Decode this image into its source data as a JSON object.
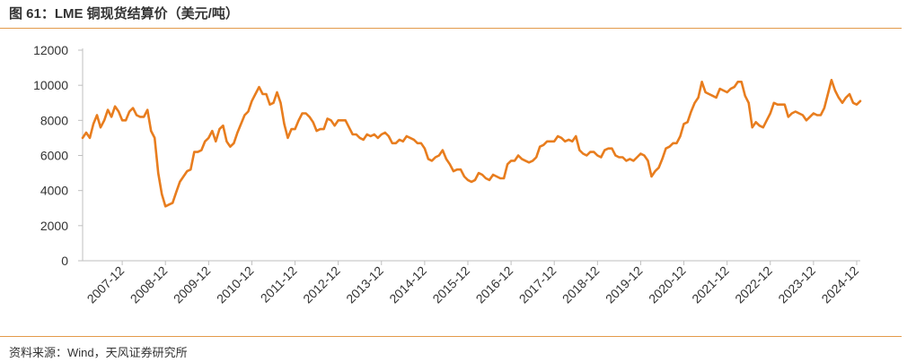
{
  "header": {
    "title": "图 61：LME 铜现货结算价（美元/吨）"
  },
  "footer": {
    "source": "资料来源：Wind，天风证券研究所"
  },
  "colors": {
    "series": "#e87d1e",
    "axis": "#bfbfbf",
    "rule": "#e39a4a"
  },
  "chart_data": {
    "type": "line",
    "title": "",
    "xlabel": "",
    "ylabel": "",
    "ylim": [
      0,
      12000
    ],
    "yticks": [
      0,
      2000,
      4000,
      6000,
      8000,
      10000,
      12000
    ],
    "xlim": [
      "2007-01",
      "2025-01"
    ],
    "xticks": [
      "2007-12",
      "2008-12",
      "2009-12",
      "2010-12",
      "2011-12",
      "2012-12",
      "2013-12",
      "2014-12",
      "2015-12",
      "2016-12",
      "2017-12",
      "2018-12",
      "2019-12",
      "2020-12",
      "2021-12",
      "2022-12",
      "2023-12",
      "2024-12"
    ],
    "grid": false,
    "legend": "none",
    "series": [
      {
        "values": [
          [
            "2007-01",
            7000
          ],
          [
            "2007-02",
            7300
          ],
          [
            "2007-03",
            7000
          ],
          [
            "2007-04",
            7800
          ],
          [
            "2007-05",
            8300
          ],
          [
            "2007-06",
            7600
          ],
          [
            "2007-07",
            8000
          ],
          [
            "2007-08",
            8600
          ],
          [
            "2007-09",
            8200
          ],
          [
            "2007-10",
            8800
          ],
          [
            "2007-11",
            8500
          ],
          [
            "2007-12",
            8000
          ],
          [
            "2008-01",
            8000
          ],
          [
            "2008-02",
            8500
          ],
          [
            "2008-03",
            8700
          ],
          [
            "2008-04",
            8300
          ],
          [
            "2008-05",
            8200
          ],
          [
            "2008-06",
            8200
          ],
          [
            "2008-07",
            8600
          ],
          [
            "2008-08",
            7400
          ],
          [
            "2008-09",
            7000
          ],
          [
            "2008-10",
            5000
          ],
          [
            "2008-11",
            3800
          ],
          [
            "2008-12",
            3100
          ],
          [
            "2009-01",
            3200
          ],
          [
            "2009-02",
            3300
          ],
          [
            "2009-03",
            3900
          ],
          [
            "2009-04",
            4500
          ],
          [
            "2009-05",
            4800
          ],
          [
            "2009-06",
            5100
          ],
          [
            "2009-07",
            5200
          ],
          [
            "2009-08",
            6200
          ],
          [
            "2009-09",
            6200
          ],
          [
            "2009-10",
            6300
          ],
          [
            "2009-11",
            6800
          ],
          [
            "2009-12",
            7000
          ],
          [
            "2010-01",
            7400
          ],
          [
            "2010-02",
            6800
          ],
          [
            "2010-03",
            7500
          ],
          [
            "2010-04",
            7700
          ],
          [
            "2010-05",
            6800
          ],
          [
            "2010-06",
            6500
          ],
          [
            "2010-07",
            6700
          ],
          [
            "2010-08",
            7300
          ],
          [
            "2010-09",
            7800
          ],
          [
            "2010-10",
            8300
          ],
          [
            "2010-11",
            8500
          ],
          [
            "2010-12",
            9100
          ],
          [
            "2011-01",
            9500
          ],
          [
            "2011-02",
            9900
          ],
          [
            "2011-03",
            9500
          ],
          [
            "2011-04",
            9500
          ],
          [
            "2011-05",
            8900
          ],
          [
            "2011-06",
            9000
          ],
          [
            "2011-07",
            9600
          ],
          [
            "2011-08",
            9000
          ],
          [
            "2011-09",
            7800
          ],
          [
            "2011-10",
            7000
          ],
          [
            "2011-11",
            7500
          ],
          [
            "2011-12",
            7500
          ],
          [
            "2012-01",
            8000
          ],
          [
            "2012-02",
            8400
          ],
          [
            "2012-03",
            8400
          ],
          [
            "2012-04",
            8200
          ],
          [
            "2012-05",
            7900
          ],
          [
            "2012-06",
            7400
          ],
          [
            "2012-07",
            7500
          ],
          [
            "2012-08",
            7500
          ],
          [
            "2012-09",
            8100
          ],
          [
            "2012-10",
            8000
          ],
          [
            "2012-11",
            7700
          ],
          [
            "2012-12",
            8000
          ],
          [
            "2013-01",
            8000
          ],
          [
            "2013-02",
            8000
          ],
          [
            "2013-03",
            7600
          ],
          [
            "2013-04",
            7200
          ],
          [
            "2013-05",
            7200
          ],
          [
            "2013-06",
            7000
          ],
          [
            "2013-07",
            6900
          ],
          [
            "2013-08",
            7200
          ],
          [
            "2013-09",
            7100
          ],
          [
            "2013-10",
            7200
          ],
          [
            "2013-11",
            7000
          ],
          [
            "2013-12",
            7200
          ],
          [
            "2014-01",
            7300
          ],
          [
            "2014-02",
            7100
          ],
          [
            "2014-03",
            6700
          ],
          [
            "2014-04",
            6700
          ],
          [
            "2014-05",
            6900
          ],
          [
            "2014-06",
            6800
          ],
          [
            "2014-07",
            7100
          ],
          [
            "2014-08",
            7000
          ],
          [
            "2014-09",
            6900
          ],
          [
            "2014-10",
            6700
          ],
          [
            "2014-11",
            6700
          ],
          [
            "2014-12",
            6400
          ],
          [
            "2015-01",
            5800
          ],
          [
            "2015-02",
            5700
          ],
          [
            "2015-03",
            5900
          ],
          [
            "2015-04",
            6000
          ],
          [
            "2015-05",
            6300
          ],
          [
            "2015-06",
            5800
          ],
          [
            "2015-07",
            5500
          ],
          [
            "2015-08",
            5100
          ],
          [
            "2015-09",
            5200
          ],
          [
            "2015-10",
            5200
          ],
          [
            "2015-11",
            4800
          ],
          [
            "2015-12",
            4600
          ],
          [
            "2016-01",
            4500
          ],
          [
            "2016-02",
            4600
          ],
          [
            "2016-03",
            5000
          ],
          [
            "2016-04",
            4900
          ],
          [
            "2016-05",
            4700
          ],
          [
            "2016-06",
            4600
          ],
          [
            "2016-07",
            4900
          ],
          [
            "2016-08",
            4800
          ],
          [
            "2016-09",
            4700
          ],
          [
            "2016-10",
            4700
          ],
          [
            "2016-11",
            5500
          ],
          [
            "2016-12",
            5700
          ],
          [
            "2017-01",
            5700
          ],
          [
            "2017-02",
            6000
          ],
          [
            "2017-03",
            5800
          ],
          [
            "2017-04",
            5700
          ],
          [
            "2017-05",
            5600
          ],
          [
            "2017-06",
            5700
          ],
          [
            "2017-07",
            5900
          ],
          [
            "2017-08",
            6500
          ],
          [
            "2017-09",
            6600
          ],
          [
            "2017-10",
            6800
          ],
          [
            "2017-11",
            6800
          ],
          [
            "2017-12",
            6800
          ],
          [
            "2018-01",
            7100
          ],
          [
            "2018-02",
            7000
          ],
          [
            "2018-03",
            6800
          ],
          [
            "2018-04",
            6900
          ],
          [
            "2018-05",
            6800
          ],
          [
            "2018-06",
            7100
          ],
          [
            "2018-07",
            6300
          ],
          [
            "2018-08",
            6100
          ],
          [
            "2018-09",
            6000
          ],
          [
            "2018-10",
            6200
          ],
          [
            "2018-11",
            6200
          ],
          [
            "2018-12",
            6000
          ],
          [
            "2019-01",
            5900
          ],
          [
            "2019-02",
            6300
          ],
          [
            "2019-03",
            6400
          ],
          [
            "2019-04",
            6400
          ],
          [
            "2019-05",
            6000
          ],
          [
            "2019-06",
            5900
          ],
          [
            "2019-07",
            5900
          ],
          [
            "2019-08",
            5700
          ],
          [
            "2019-09",
            5800
          ],
          [
            "2019-10",
            5700
          ],
          [
            "2019-11",
            5900
          ],
          [
            "2019-12",
            6100
          ],
          [
            "2020-01",
            6000
          ],
          [
            "2020-02",
            5700
          ],
          [
            "2020-03",
            4800
          ],
          [
            "2020-04",
            5100
          ],
          [
            "2020-05",
            5300
          ],
          [
            "2020-06",
            5800
          ],
          [
            "2020-07",
            6400
          ],
          [
            "2020-08",
            6500
          ],
          [
            "2020-09",
            6700
          ],
          [
            "2020-10",
            6700
          ],
          [
            "2020-11",
            7100
          ],
          [
            "2020-12",
            7800
          ],
          [
            "2021-01",
            7900
          ],
          [
            "2021-02",
            8500
          ],
          [
            "2021-03",
            9000
          ],
          [
            "2021-04",
            9300
          ],
          [
            "2021-05",
            10200
          ],
          [
            "2021-06",
            9600
          ],
          [
            "2021-07",
            9500
          ],
          [
            "2021-08",
            9400
          ],
          [
            "2021-09",
            9300
          ],
          [
            "2021-10",
            9800
          ],
          [
            "2021-11",
            9700
          ],
          [
            "2021-12",
            9600
          ],
          [
            "2022-01",
            9800
          ],
          [
            "2022-02",
            9900
          ],
          [
            "2022-03",
            10200
          ],
          [
            "2022-04",
            10200
          ],
          [
            "2022-05",
            9400
          ],
          [
            "2022-06",
            9000
          ],
          [
            "2022-07",
            7600
          ],
          [
            "2022-08",
            7900
          ],
          [
            "2022-09",
            7700
          ],
          [
            "2022-10",
            7600
          ],
          [
            "2022-11",
            8000
          ],
          [
            "2022-12",
            8400
          ],
          [
            "2023-01",
            9000
          ],
          [
            "2023-02",
            8900
          ],
          [
            "2023-03",
            8900
          ],
          [
            "2023-04",
            8900
          ],
          [
            "2023-05",
            8200
          ],
          [
            "2023-06",
            8400
          ],
          [
            "2023-07",
            8500
          ],
          [
            "2023-08",
            8400
          ],
          [
            "2023-09",
            8300
          ],
          [
            "2023-10",
            8000
          ],
          [
            "2023-11",
            8200
          ],
          [
            "2023-12",
            8400
          ],
          [
            "2024-01",
            8300
          ],
          [
            "2024-02",
            8300
          ],
          [
            "2024-03",
            8700
          ],
          [
            "2024-04",
            9500
          ],
          [
            "2024-05",
            10300
          ],
          [
            "2024-06",
            9700
          ],
          [
            "2024-07",
            9300
          ],
          [
            "2024-08",
            9000
          ],
          [
            "2024-09",
            9300
          ],
          [
            "2024-10",
            9500
          ],
          [
            "2024-11",
            9000
          ],
          [
            "2024-12",
            8900
          ],
          [
            "2025-01",
            9100
          ]
        ]
      }
    ]
  }
}
